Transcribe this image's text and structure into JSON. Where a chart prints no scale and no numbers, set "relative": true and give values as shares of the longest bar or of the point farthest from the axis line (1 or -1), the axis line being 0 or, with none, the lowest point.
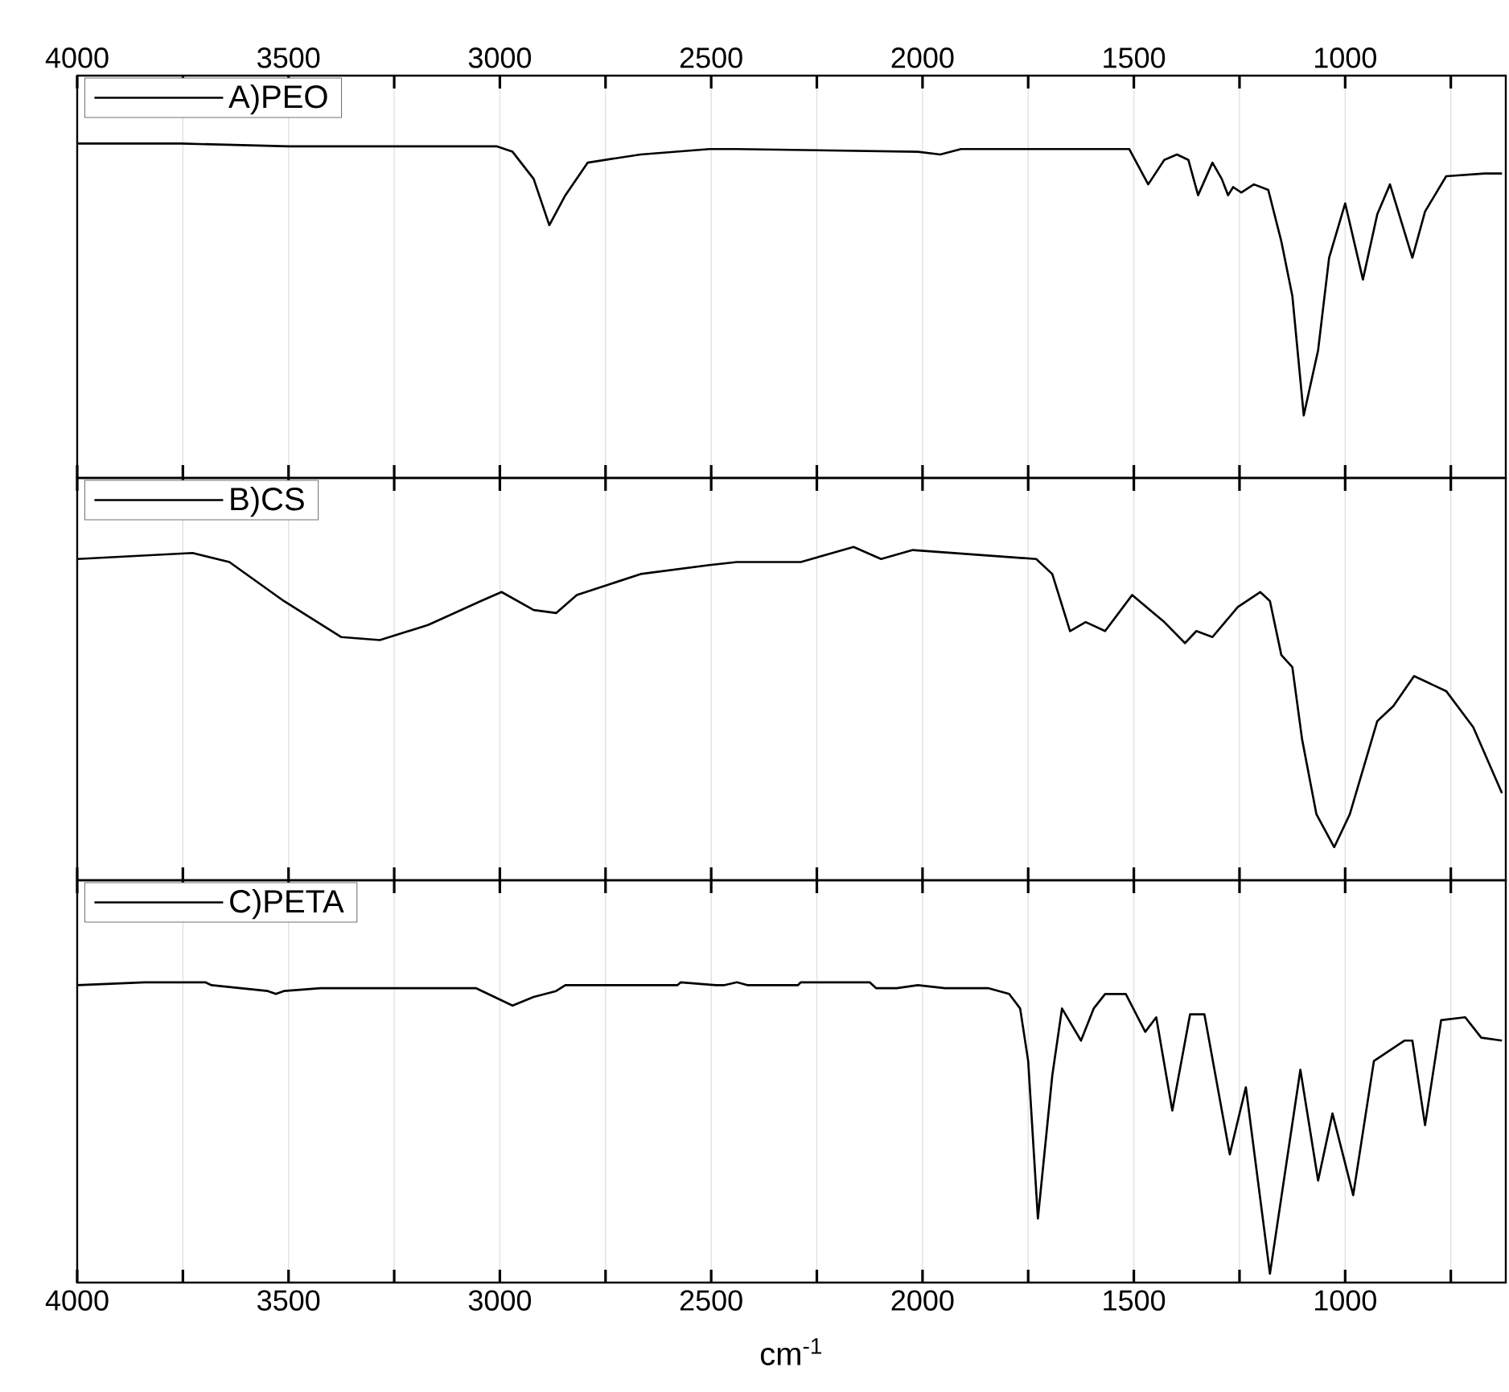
{
  "chart_data": [
    {
      "type": "line",
      "relative": true,
      "legend": "top left",
      "grid": "x",
      "tick_labels": "x",
      "marker": "none",
      "line_style": "solid",
      "xlim": [
        4000,
        620
      ],
      "xticks": [
        4000,
        {
          "value": 3750,
          "label": null
        },
        3500,
        {
          "value": 3250,
          "label": null
        },
        3000,
        {
          "value": 2750,
          "label": null
        },
        2500,
        {
          "value": 2250,
          "label": null
        },
        2000,
        {
          "value": 1750,
          "label": null
        },
        1500,
        {
          "value": 1250,
          "label": null
        },
        1000,
        {
          "value": 750,
          "label": null
        }
      ],
      "series": [
        {
          "name": "A)PEO",
          "color": "#000000",
          "x": [
            4000,
            3754,
            3500,
            3008,
            2970,
            2920,
            2883,
            2845,
            2792,
            2667,
            2504,
            2439,
            2011,
            1958,
            1909,
            1511,
            1466,
            1428,
            1398,
            1371,
            1348,
            1314,
            1292,
            1277,
            1265,
            1246,
            1216,
            1182,
            1151,
            1125,
            1098,
            1064,
            1038,
            1000,
            958,
            924,
            894,
            841,
            811,
            761,
            670,
            629
          ],
          "values": [
            1.0,
            1.0,
            0.99,
            0.99,
            0.97,
            0.87,
            0.7,
            0.81,
            0.93,
            0.96,
            0.98,
            0.98,
            0.97,
            0.96,
            0.98,
            0.98,
            0.85,
            0.94,
            0.96,
            0.94,
            0.81,
            0.93,
            0.87,
            0.81,
            0.84,
            0.82,
            0.85,
            0.83,
            0.64,
            0.44,
            0.0,
            0.24,
            0.58,
            0.78,
            0.5,
            0.74,
            0.85,
            0.58,
            0.75,
            0.88,
            0.89,
            0.89
          ]
        }
      ]
    },
    {
      "type": "line",
      "relative": true,
      "legend": "top left",
      "grid": "x",
      "tick_labels": false,
      "marker": "none",
      "line_style": "solid",
      "xlim": [
        4000,
        620
      ],
      "xticks": [
        4000,
        {
          "value": 3750,
          "label": null
        },
        3500,
        {
          "value": 3250,
          "label": null
        },
        3000,
        {
          "value": 2750,
          "label": null
        },
        2500,
        {
          "value": 2250,
          "label": null
        },
        2000,
        {
          "value": 1750,
          "label": null
        },
        1500,
        {
          "value": 1250,
          "label": null
        },
        1000,
        {
          "value": 750,
          "label": null
        }
      ],
      "series": [
        {
          "name": "B)CS",
          "color": "#000000",
          "x": [
            4000,
            3727,
            3640,
            3511,
            3375,
            3284,
            3170,
            3045,
            2996,
            2920,
            2867,
            2818,
            2667,
            2504,
            2439,
            2288,
            2163,
            2098,
            2023,
            1731,
            1693,
            1651,
            1614,
            1568,
            1504,
            1428,
            1379,
            1352,
            1314,
            1254,
            1201,
            1178,
            1151,
            1125,
            1102,
            1068,
            1026,
            989,
            924,
            886,
            837,
            761,
            697,
            629
          ],
          "values": [
            0.96,
            0.98,
            0.95,
            0.82,
            0.7,
            0.69,
            0.74,
            0.82,
            0.85,
            0.79,
            0.78,
            0.84,
            0.91,
            0.94,
            0.95,
            0.95,
            1.0,
            0.96,
            0.99,
            0.96,
            0.91,
            0.72,
            0.75,
            0.72,
            0.84,
            0.75,
            0.68,
            0.72,
            0.7,
            0.8,
            0.85,
            0.82,
            0.64,
            0.6,
            0.36,
            0.11,
            0.0,
            0.11,
            0.42,
            0.47,
            0.57,
            0.52,
            0.4,
            0.18
          ]
        }
      ]
    },
    {
      "type": "line",
      "relative": true,
      "legend": "top left",
      "grid": "x",
      "marker": "none",
      "line_style": "solid",
      "xlabel": "cm$^{-1}$",
      "xlim": [
        4000,
        620
      ],
      "xticks": [
        4000,
        {
          "value": 3750,
          "label": null
        },
        3500,
        {
          "value": 3250,
          "label": null
        },
        3000,
        {
          "value": 2750,
          "label": null
        },
        2500,
        {
          "value": 2250,
          "label": null
        },
        2000,
        {
          "value": 1750,
          "label": null
        },
        1500,
        {
          "value": 1250,
          "label": null
        },
        1000,
        {
          "value": 750,
          "label": null
        }
      ],
      "tick_labels": "x",
      "series": [
        {
          "name": "C)PETA",
          "color": "#000000",
          "x": [
            4000,
            3841,
            3697,
            3682,
            3549,
            3530,
            3511,
            3424,
            3057,
            2970,
            2920,
            2867,
            2845,
            2580,
            2572,
            2489,
            2470,
            2439,
            2413,
            2295,
            2288,
            2125,
            2110,
            2061,
            2011,
            1947,
            1845,
            1795,
            1769,
            1750,
            1727,
            1693,
            1670,
            1625,
            1595,
            1568,
            1519,
            1473,
            1447,
            1409,
            1367,
            1333,
            1273,
            1235,
            1178,
            1106,
            1064,
            1030,
            981,
            932,
            860,
            841,
            811,
            773,
            716,
            678,
            629
          ],
          "values": [
            0.99,
            1.0,
            1.0,
            0.99,
            0.97,
            0.96,
            0.97,
            0.98,
            0.98,
            0.92,
            0.95,
            0.97,
            0.99,
            0.99,
            1.0,
            0.99,
            0.99,
            1.0,
            0.99,
            0.99,
            1.0,
            1.0,
            0.98,
            0.98,
            0.99,
            0.98,
            0.98,
            0.96,
            0.91,
            0.73,
            0.19,
            0.68,
            0.91,
            0.8,
            0.91,
            0.96,
            0.96,
            0.83,
            0.88,
            0.56,
            0.89,
            0.89,
            0.41,
            0.64,
            0.0,
            0.7,
            0.32,
            0.55,
            0.27,
            0.73,
            0.8,
            0.8,
            0.51,
            0.87,
            0.88,
            0.81,
            0.8
          ]
        }
      ]
    }
  ]
}
